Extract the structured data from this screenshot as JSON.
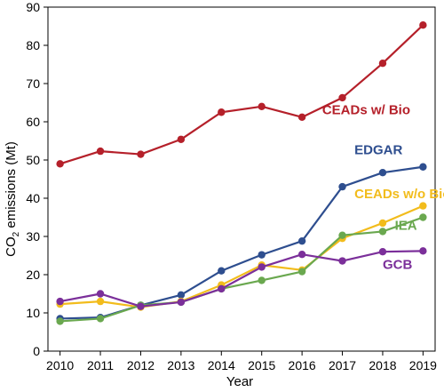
{
  "chart_data": {
    "type": "line",
    "xlabel": "Year",
    "ylabel_prefix": "CO",
    "ylabel_sub": "2",
    "ylabel_suffix": " emissions (Mt)",
    "x": [
      2010,
      2011,
      2012,
      2013,
      2014,
      2015,
      2016,
      2017,
      2018,
      2019
    ],
    "xlim": [
      2009.7,
      2019.3
    ],
    "ylim": [
      0,
      90
    ],
    "yticks": [
      0,
      10,
      20,
      30,
      40,
      50,
      60,
      70,
      80,
      90
    ],
    "grid": false,
    "series": [
      {
        "name": "CEADs w/ Bio",
        "color": "#b5202a",
        "values": [
          49.0,
          52.3,
          51.5,
          55.4,
          62.5,
          64.0,
          61.2,
          66.3,
          75.3,
          85.3
        ],
        "label_anchor": "start",
        "label_at": [
          2016.5,
          62.0
        ]
      },
      {
        "name": "EDGAR",
        "color": "#2e4e8f",
        "values": [
          8.5,
          8.8,
          12.0,
          14.7,
          21.0,
          25.2,
          28.8,
          43.0,
          46.7,
          48.2
        ],
        "label_anchor": "start",
        "label_at": [
          2017.3,
          51.5
        ]
      },
      {
        "name": "CEADs w/o Bio",
        "color": "#f2bc1c",
        "values": [
          12.3,
          13.0,
          11.5,
          13.0,
          17.3,
          22.5,
          21.2,
          29.5,
          33.5,
          38.0
        ],
        "label_anchor": "start",
        "label_at": [
          2017.3,
          40.0
        ]
      },
      {
        "name": "IEA",
        "color": "#6aa84f",
        "values": [
          7.8,
          8.5,
          12.0,
          12.8,
          16.3,
          18.5,
          20.8,
          30.3,
          31.3,
          35.0
        ],
        "label_anchor": "start",
        "label_at": [
          2018.3,
          31.8
        ]
      },
      {
        "name": "GCB",
        "color": "#7b2f9a",
        "values": [
          13.0,
          15.0,
          11.7,
          12.8,
          16.3,
          22.0,
          25.3,
          23.6,
          26.0,
          26.2
        ],
        "label_anchor": "start",
        "label_at": [
          2018.0,
          21.5
        ]
      }
    ]
  }
}
